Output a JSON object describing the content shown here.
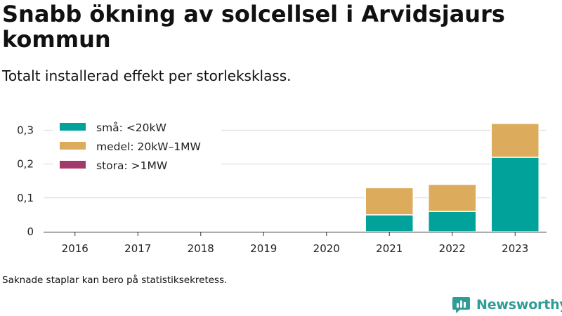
{
  "title": "Snabb ökning av solcellsel i Arvidsjaurs kommun",
  "subtitle": "Totalt installerad effekt per storleksklass.",
  "footnote": "Saknade staplar kan bero på statistiksekretess.",
  "brand": {
    "name": "Newsworthy",
    "color": "#2f9c95"
  },
  "chart_data": {
    "type": "bar",
    "stacked": true,
    "categories": [
      "2016",
      "2017",
      "2018",
      "2019",
      "2020",
      "2021",
      "2022",
      "2023"
    ],
    "series": [
      {
        "name": "små: <20kW",
        "color": "#00a29a",
        "values": [
          null,
          null,
          null,
          null,
          null,
          0.05,
          0.06,
          0.22
        ]
      },
      {
        "name": "medel: 20kW–1MW",
        "color": "#dcab5b",
        "values": [
          null,
          null,
          null,
          null,
          null,
          0.08,
          0.08,
          0.1
        ]
      },
      {
        "name": "stora: >1MW",
        "color": "#a43a6a",
        "values": [
          null,
          null,
          null,
          null,
          null,
          0,
          0,
          0
        ]
      }
    ],
    "yticks": [
      "0",
      "0,1",
      "0,2",
      "0,3"
    ],
    "ytick_values": [
      0,
      0.1,
      0.2,
      0.3
    ],
    "ylim": [
      0,
      0.3
    ],
    "grid": true,
    "legend_position": "top-left"
  }
}
